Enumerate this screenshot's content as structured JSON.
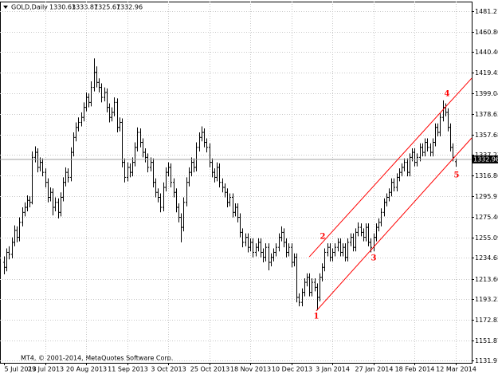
{
  "chart_data": {
    "type": "ohlc",
    "title": "GOLD,Daily",
    "footer": "MT4, © 2001-2014, MetaQuotes Software Corp.",
    "color": "#000000",
    "channel_color": "#ff0000",
    "grid": true,
    "ylim": [
      1129.5,
      1490.8
    ],
    "xlim": [
      -1.55,
      182.3
    ],
    "yticks": [
      1481.21,
      {
        "value": 1460.8,
        "label": "1460.80"
      },
      {
        "value": 1440.4,
        "label": "1440.40"
      },
      1419.45,
      1399.04,
      1378.63,
      1357.68,
      1337.27,
      1316.86,
      1295.91,
      {
        "value": 1275.4,
        "label": "1275.40"
      },
      1255.09,
      1234.68,
      {
        "value": 1213.6,
        "label": "1213.60"
      },
      1193.23,
      1172.82,
      1151.87,
      1131.91
    ],
    "xticks": [
      {
        "value": 0,
        "label": "5 Jul 2013"
      },
      {
        "value": 16,
        "label": "29 Jul 2013"
      },
      {
        "value": 32,
        "label": "20 Aug 2013"
      },
      {
        "value": 48,
        "label": "11 Sep 2013"
      },
      {
        "value": 64,
        "label": "3 Oct 2013"
      },
      {
        "value": 80,
        "label": "25 Oct 2013"
      },
      {
        "value": 96,
        "label": "18 Nov 2013"
      },
      {
        "value": 112,
        "label": "10 Dec 2013"
      },
      {
        "value": 128,
        "label": "3 Jan 2014"
      },
      {
        "value": 144,
        "label": "27 Jan 2014"
      },
      {
        "value": 160,
        "label": "18 Feb 2014"
      },
      {
        "value": 176,
        "label": "12 Mar 2014"
      }
    ],
    "channels": [
      {
        "x": [
          119,
          182.3
        ],
        "y": [
          1235.5,
          1414.2
        ]
      },
      {
        "x": [
          121.7,
          182.3
        ],
        "y": [
          1181.4,
          1354.4
        ]
      }
    ],
    "annotations": [
      "1",
      "2",
      "3",
      "4",
      "5"
    ],
    "bars": [
      [
        1230,
        1236,
        1218,
        1225
      ],
      [
        1225,
        1244,
        1221,
        1240
      ],
      [
        1240,
        1246,
        1233,
        1238
      ],
      [
        1238,
        1255,
        1234,
        1250
      ],
      [
        1250,
        1267,
        1246,
        1262
      ],
      [
        1262,
        1266,
        1250,
        1255
      ],
      [
        1255,
        1275,
        1251,
        1270
      ],
      [
        1270,
        1285,
        1266,
        1280
      ],
      [
        1280,
        1290,
        1276,
        1285
      ],
      [
        1285,
        1297,
        1281,
        1292
      ],
      [
        1292,
        1296,
        1285,
        1290
      ],
      [
        1290,
        1341,
        1288,
        1335
      ],
      [
        1335,
        1346,
        1330,
        1340
      ],
      [
        1340,
        1344,
        1320,
        1325
      ],
      [
        1325,
        1335,
        1321,
        1330
      ],
      [
        1330,
        1334,
        1316,
        1320
      ],
      [
        1320,
        1324,
        1305,
        1310
      ],
      [
        1310,
        1314,
        1290,
        1295
      ],
      [
        1295,
        1305,
        1291,
        1300
      ],
      [
        1300,
        1304,
        1277,
        1285
      ],
      [
        1285,
        1295,
        1281,
        1290
      ],
      [
        1290,
        1294,
        1274,
        1280
      ],
      [
        1280,
        1300,
        1276,
        1295
      ],
      [
        1295,
        1315,
        1291,
        1310
      ],
      [
        1310,
        1325,
        1306,
        1320
      ],
      [
        1320,
        1324,
        1310,
        1315
      ],
      [
        1315,
        1345,
        1311,
        1340
      ],
      [
        1340,
        1360,
        1336,
        1355
      ],
      [
        1355,
        1370,
        1351,
        1365
      ],
      [
        1365,
        1375,
        1361,
        1370
      ],
      [
        1370,
        1380,
        1366,
        1375
      ],
      [
        1375,
        1390,
        1371,
        1385
      ],
      [
        1385,
        1400,
        1381,
        1395
      ],
      [
        1395,
        1399,
        1385,
        1390
      ],
      [
        1390,
        1411,
        1386,
        1405
      ],
      [
        1405,
        1434,
        1401,
        1420
      ],
      [
        1420,
        1426,
        1405,
        1410
      ],
      [
        1410,
        1414,
        1400,
        1405
      ],
      [
        1405,
        1409,
        1390,
        1395
      ],
      [
        1395,
        1405,
        1391,
        1400
      ],
      [
        1400,
        1404,
        1380,
        1385
      ],
      [
        1385,
        1389,
        1370,
        1375
      ],
      [
        1375,
        1385,
        1371,
        1380
      ],
      [
        1380,
        1395,
        1376,
        1390
      ],
      [
        1390,
        1394,
        1360,
        1365
      ],
      [
        1365,
        1375,
        1361,
        1370
      ],
      [
        1370,
        1374,
        1325,
        1330
      ],
      [
        1330,
        1334,
        1310,
        1315
      ],
      [
        1315,
        1330,
        1311,
        1325
      ],
      [
        1325,
        1329,
        1315,
        1320
      ],
      [
        1320,
        1335,
        1316,
        1330
      ],
      [
        1330,
        1350,
        1326,
        1345
      ],
      [
        1345,
        1365,
        1341,
        1360
      ],
      [
        1360,
        1364,
        1345,
        1350
      ],
      [
        1350,
        1354,
        1335,
        1340
      ],
      [
        1340,
        1344,
        1330,
        1335
      ],
      [
        1335,
        1339,
        1320,
        1325
      ],
      [
        1325,
        1335,
        1321,
        1330
      ],
      [
        1330,
        1334,
        1305,
        1310
      ],
      [
        1310,
        1314,
        1295,
        1300
      ],
      [
        1300,
        1304,
        1290,
        1295
      ],
      [
        1295,
        1299,
        1280,
        1285
      ],
      [
        1285,
        1310,
        1281,
        1305
      ],
      [
        1305,
        1325,
        1301,
        1320
      ],
      [
        1320,
        1330,
        1316,
        1325
      ],
      [
        1325,
        1329,
        1305,
        1310
      ],
      [
        1310,
        1314,
        1295,
        1300
      ],
      [
        1300,
        1304,
        1280,
        1285
      ],
      [
        1285,
        1289,
        1270,
        1275
      ],
      [
        1275,
        1279,
        1250,
        1265
      ],
      [
        1265,
        1295,
        1261,
        1290
      ],
      [
        1290,
        1315,
        1286,
        1310
      ],
      [
        1310,
        1325,
        1306,
        1320
      ],
      [
        1320,
        1335,
        1316,
        1330
      ],
      [
        1330,
        1334,
        1320,
        1325
      ],
      [
        1325,
        1350,
        1321,
        1345
      ],
      [
        1345,
        1360,
        1341,
        1355
      ],
      [
        1355,
        1366,
        1351,
        1360
      ],
      [
        1360,
        1364,
        1345,
        1350
      ],
      [
        1350,
        1354,
        1340,
        1345
      ],
      [
        1345,
        1349,
        1325,
        1330
      ],
      [
        1330,
        1334,
        1315,
        1320
      ],
      [
        1320,
        1324,
        1310,
        1315
      ],
      [
        1315,
        1330,
        1311,
        1325
      ],
      [
        1325,
        1329,
        1305,
        1310
      ],
      [
        1310,
        1314,
        1300,
        1305
      ],
      [
        1305,
        1309,
        1295,
        1300
      ],
      [
        1300,
        1304,
        1285,
        1290
      ],
      [
        1290,
        1299,
        1286,
        1295
      ],
      [
        1295,
        1299,
        1275,
        1280
      ],
      [
        1280,
        1289,
        1276,
        1285
      ],
      [
        1285,
        1289,
        1270,
        1275
      ],
      [
        1275,
        1279,
        1255,
        1260
      ],
      [
        1260,
        1264,
        1245,
        1250
      ],
      [
        1250,
        1259,
        1246,
        1255
      ],
      [
        1255,
        1259,
        1240,
        1245
      ],
      [
        1245,
        1254,
        1241,
        1250
      ],
      [
        1250,
        1254,
        1235,
        1240
      ],
      [
        1240,
        1249,
        1236,
        1245
      ],
      [
        1245,
        1254,
        1241,
        1250
      ],
      [
        1250,
        1254,
        1235,
        1240
      ],
      [
        1240,
        1244,
        1230,
        1235
      ],
      [
        1235,
        1249,
        1231,
        1245
      ],
      [
        1245,
        1249,
        1222,
        1230
      ],
      [
        1230,
        1239,
        1226,
        1235
      ],
      [
        1235,
        1244,
        1231,
        1240
      ],
      [
        1240,
        1249,
        1236,
        1245
      ],
      [
        1245,
        1259,
        1241,
        1255
      ],
      [
        1255,
        1266,
        1251,
        1260
      ],
      [
        1260,
        1264,
        1245,
        1250
      ],
      [
        1250,
        1254,
        1235,
        1240
      ],
      [
        1240,
        1249,
        1236,
        1245
      ],
      [
        1245,
        1249,
        1225,
        1230
      ],
      [
        1230,
        1239,
        1226,
        1235
      ],
      [
        1235,
        1239,
        1190,
        1195
      ],
      [
        1195,
        1199,
        1186,
        1190
      ],
      [
        1190,
        1204,
        1186,
        1200
      ],
      [
        1200,
        1214,
        1196,
        1210
      ],
      [
        1210,
        1219,
        1206,
        1215
      ],
      [
        1215,
        1219,
        1196,
        1200
      ],
      [
        1200,
        1214,
        1196,
        1210
      ],
      [
        1210,
        1214,
        1201,
        1205
      ],
      [
        1205,
        1209,
        1182,
        1195
      ],
      [
        1195,
        1219,
        1191,
        1215
      ],
      [
        1215,
        1229,
        1211,
        1225
      ],
      [
        1225,
        1244,
        1221,
        1240
      ],
      [
        1240,
        1249,
        1236,
        1245
      ],
      [
        1245,
        1249,
        1231,
        1235
      ],
      [
        1235,
        1244,
        1231,
        1240
      ],
      [
        1240,
        1249,
        1236,
        1245
      ],
      [
        1245,
        1254,
        1241,
        1250
      ],
      [
        1250,
        1254,
        1236,
        1240
      ],
      [
        1240,
        1249,
        1236,
        1245
      ],
      [
        1245,
        1249,
        1231,
        1235
      ],
      [
        1235,
        1254,
        1231,
        1250
      ],
      [
        1250,
        1259,
        1246,
        1255
      ],
      [
        1255,
        1259,
        1241,
        1245
      ],
      [
        1245,
        1264,
        1241,
        1260
      ],
      [
        1260,
        1270,
        1256,
        1265
      ],
      [
        1265,
        1269,
        1256,
        1260
      ],
      [
        1260,
        1264,
        1251,
        1255
      ],
      [
        1255,
        1269,
        1251,
        1265
      ],
      [
        1265,
        1269,
        1246,
        1250
      ],
      [
        1250,
        1254,
        1240,
        1245
      ],
      [
        1245,
        1259,
        1241,
        1255
      ],
      [
        1255,
        1269,
        1251,
        1265
      ],
      [
        1265,
        1274,
        1261,
        1270
      ],
      [
        1270,
        1284,
        1266,
        1280
      ],
      [
        1280,
        1294,
        1276,
        1290
      ],
      [
        1290,
        1299,
        1286,
        1295
      ],
      [
        1295,
        1304,
        1291,
        1300
      ],
      [
        1300,
        1314,
        1296,
        1310
      ],
      [
        1310,
        1314,
        1301,
        1305
      ],
      [
        1305,
        1319,
        1301,
        1315
      ],
      [
        1315,
        1324,
        1311,
        1320
      ],
      [
        1320,
        1329,
        1316,
        1325
      ],
      [
        1325,
        1334,
        1321,
        1330
      ],
      [
        1330,
        1334,
        1316,
        1320
      ],
      [
        1320,
        1339,
        1316,
        1335
      ],
      [
        1335,
        1344,
        1331,
        1340
      ],
      [
        1340,
        1344,
        1326,
        1330
      ],
      [
        1330,
        1339,
        1326,
        1335
      ],
      [
        1335,
        1349,
        1331,
        1345
      ],
      [
        1345,
        1349,
        1336,
        1340
      ],
      [
        1340,
        1354,
        1336,
        1350
      ],
      [
        1350,
        1354,
        1341,
        1345
      ],
      [
        1345,
        1349,
        1336,
        1340
      ],
      [
        1340,
        1354,
        1336,
        1350
      ],
      [
        1350,
        1369,
        1346,
        1365
      ],
      [
        1365,
        1369,
        1356,
        1360
      ],
      [
        1360,
        1379,
        1356,
        1375
      ],
      [
        1375,
        1392,
        1371,
        1385
      ],
      [
        1385,
        1389,
        1376,
        1380
      ],
      [
        1380,
        1384,
        1361,
        1365
      ],
      [
        1365,
        1369,
        1341,
        1345
      ],
      [
        1345,
        1349,
        1331,
        1335
      ],
      [
        1330.63,
        1333.87,
        1325.67,
        1332.96
      ]
    ]
  }
}
